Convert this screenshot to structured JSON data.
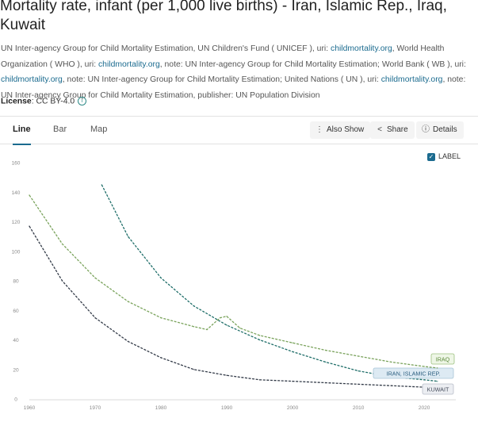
{
  "header": {
    "title": "Mortality rate, infant (per 1,000 live births) - Iran, Islamic Rep., Iraq, Kuwait",
    "source_parts": [
      {
        "text": "UN Inter-agency Group for Child Mortality Estimation, UN Children's Fund ( UNICEF ), uri: "
      },
      {
        "text": "childmortality.org",
        "link": true
      },
      {
        "text": ", World Health Organization ( WHO ), uri: "
      },
      {
        "text": "childmortality.org",
        "link": true
      },
      {
        "text": ", note: UN Inter-agency Group for Child Mortality Estimation; World Bank ( WB ), uri: "
      },
      {
        "text": "childmortality.org",
        "link": true
      },
      {
        "text": ", note: UN Inter-agency Group for Child Mortality Estimation; United Nations ( UN ), uri: "
      },
      {
        "text": "childmortality.org",
        "link": true
      },
      {
        "text": ", note: UN Inter-agency Group for Child Mortality Estimation, publisher: UN Population Division"
      }
    ],
    "license_label": "License",
    "license_value": ": CC BY-4.0",
    "license_icon": "info-icon"
  },
  "tabs": [
    {
      "label": "Line",
      "active": true
    },
    {
      "label": "Bar",
      "active": false
    },
    {
      "label": "Map",
      "active": false
    }
  ],
  "toolbar": {
    "also_show": {
      "label": "Also Show",
      "icon": "vertical-dots-icon"
    },
    "share": {
      "label": "Share",
      "icon": "share-icon"
    },
    "details": {
      "label": "Details",
      "icon": "info-circle-icon"
    }
  },
  "label_toggle": {
    "label": "LABEL",
    "checked": true
  },
  "colors": {
    "accent": "#1b6b8f",
    "iran": "#1f6e69",
    "iraq": "#7aa35c",
    "kuwait": "#333b48"
  },
  "chart_data": {
    "type": "line",
    "title": "",
    "xlabel": "",
    "ylabel": "",
    "xlim": [
      1960,
      2023
    ],
    "ylim": [
      0,
      160
    ],
    "x_ticks": [
      1960,
      1970,
      1980,
      1990,
      2000,
      2010,
      2020
    ],
    "y_ticks": [
      0,
      20,
      40,
      60,
      80,
      100,
      120,
      140,
      160
    ],
    "grid": false,
    "series": [
      {
        "name": "IRAN, ISLAMIC REP.",
        "color": "#1f6e69",
        "x": [
          1971,
          1975,
          1980,
          1985,
          1990,
          1995,
          2000,
          2005,
          2010,
          2015,
          2020,
          2022
        ],
        "y": [
          145,
          110,
          82,
          63,
          50,
          40,
          32,
          25,
          19,
          15,
          13,
          12
        ]
      },
      {
        "name": "IRAQ",
        "color": "#7aa35c",
        "x": [
          1960,
          1965,
          1970,
          1975,
          1980,
          1985,
          1987,
          1989,
          1990,
          1992,
          1995,
          2000,
          2005,
          2010,
          2015,
          2020,
          2022
        ],
        "y": [
          138,
          105,
          82,
          66,
          55,
          49,
          47,
          55,
          56,
          48,
          43,
          38,
          33,
          29,
          25,
          22,
          21
        ]
      },
      {
        "name": "KUWAIT",
        "color": "#333b48",
        "x": [
          1960,
          1965,
          1970,
          1975,
          1980,
          1985,
          1990,
          1995,
          2000,
          2005,
          2010,
          2015,
          2020,
          2022
        ],
        "y": [
          117,
          80,
          55,
          39,
          28,
          20,
          16,
          13,
          12,
          11,
          10,
          9,
          8,
          8
        ]
      }
    ]
  }
}
